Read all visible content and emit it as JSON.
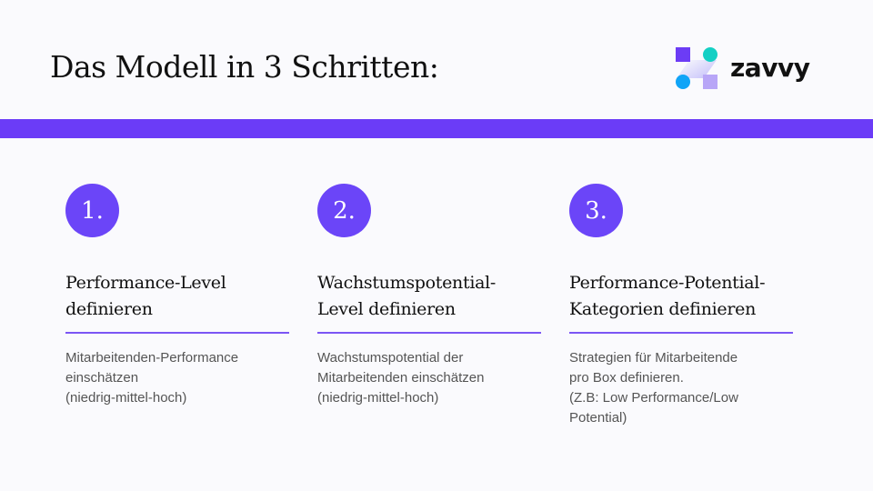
{
  "header": {
    "title": "Das Modell in 3 Schritten:",
    "logo_text": "zavvy"
  },
  "colors": {
    "accent": "#6b3cf7",
    "badge": "#6b45f8",
    "background": "#fafafd",
    "logo_teal": "#14d0c4",
    "logo_blue": "#10a4f7"
  },
  "steps": [
    {
      "number": "1.",
      "title": "Performance-Level\ndefinieren",
      "description": "Mitarbeitenden-Performance\neinschätzen\n(niedrig-mittel-hoch)"
    },
    {
      "number": "2.",
      "title": "Wachstumspotential-\nLevel definieren",
      "description": "Wachstumspotential der\nMitarbeitenden einschätzen\n(niedrig-mittel-hoch)"
    },
    {
      "number": "3.",
      "title": "Performance-Potential-\nKategorien definieren",
      "description": "Strategien für Mitarbeitende\npro Box definieren.\n(Z.B: Low Performance/Low\nPotential)"
    }
  ]
}
